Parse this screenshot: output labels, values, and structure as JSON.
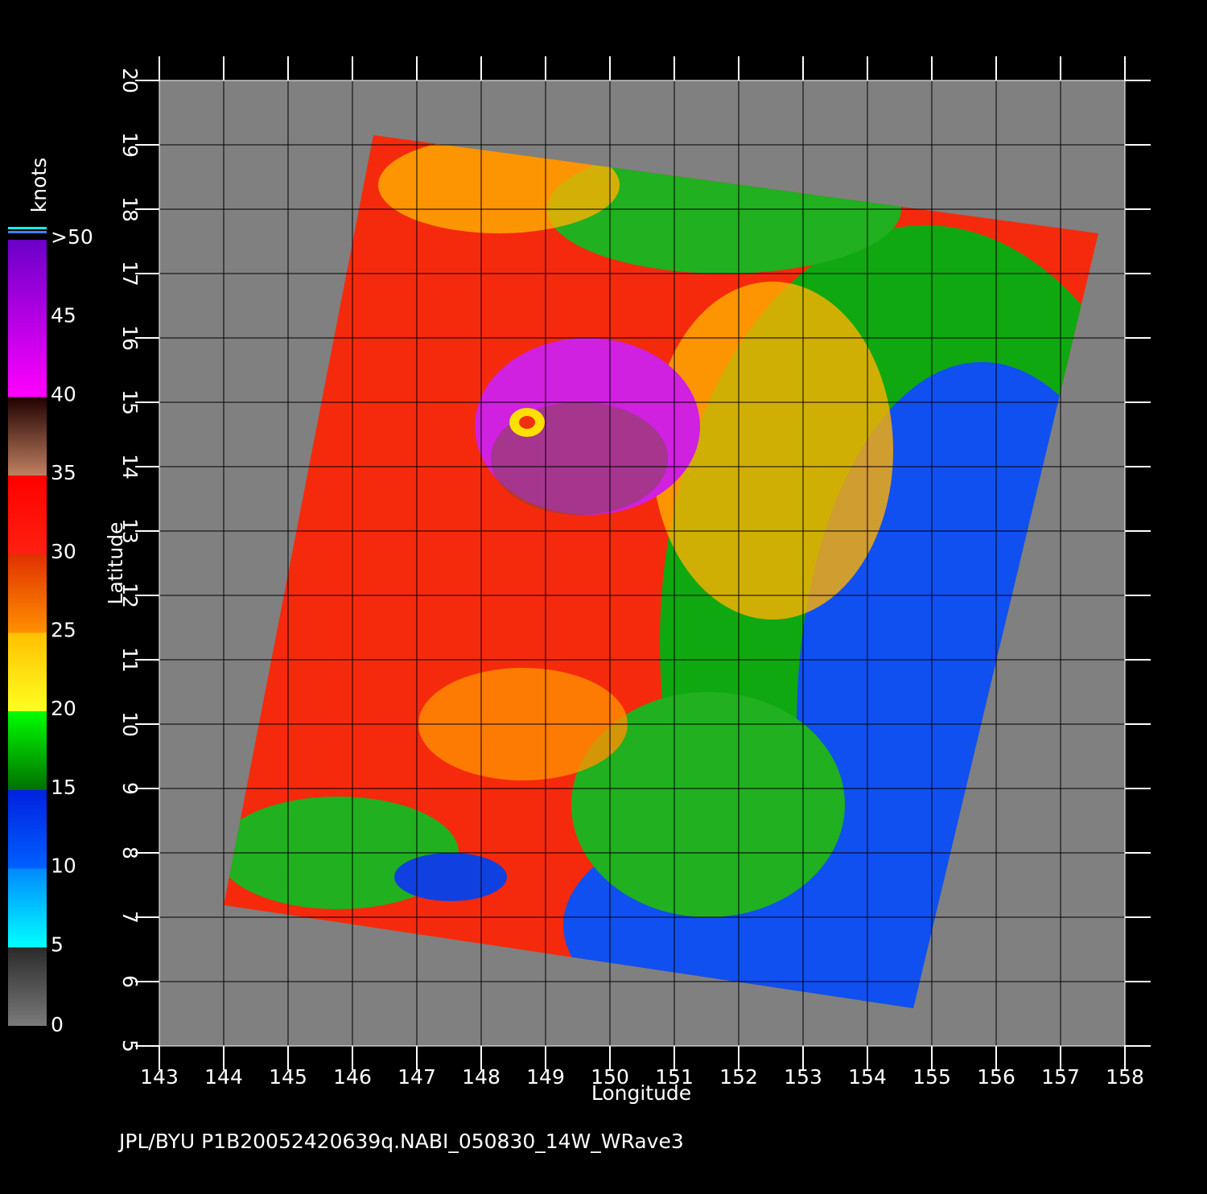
{
  "map": {
    "x_label": "Longitude",
    "y_label": "Latitude",
    "xlim": [
      143,
      158
    ],
    "ylim": [
      5,
      20
    ],
    "xticks": [
      143,
      144,
      145,
      146,
      147,
      148,
      149,
      150,
      151,
      152,
      153,
      154,
      155,
      156,
      157,
      158
    ],
    "yticks": [
      5,
      6,
      7,
      8,
      9,
      10,
      11,
      12,
      13,
      14,
      15,
      16,
      17,
      18,
      19,
      20
    ]
  },
  "colorbar": {
    "label": "knots",
    "range": [
      0,
      50
    ],
    "ticks": [
      0,
      5,
      10,
      15,
      20,
      25,
      30,
      35,
      40,
      45,
      {
        "value": 50,
        "label": ">50"
      }
    ]
  },
  "footer": "JPL/BYU  P1B20052420639q.NABI_050830_14W_WRave3"
}
